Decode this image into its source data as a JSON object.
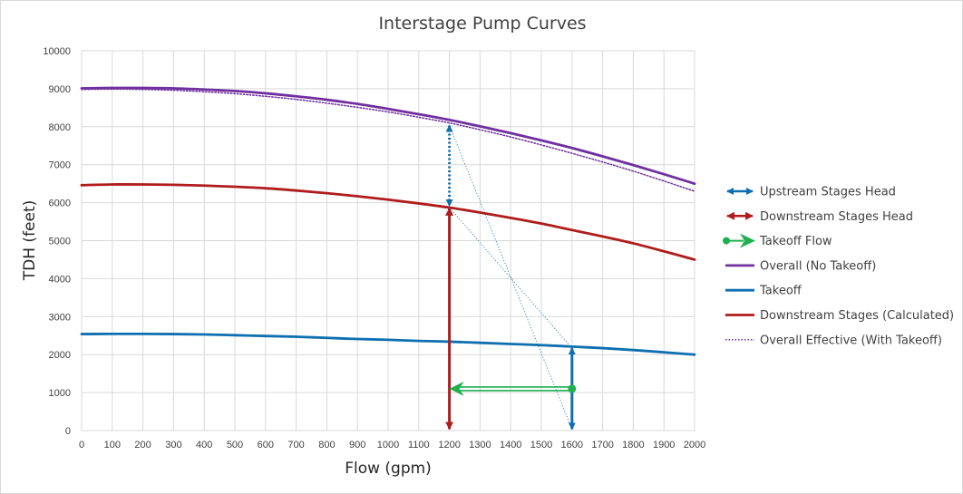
{
  "chart_data": {
    "type": "line",
    "title": "Interstage Pump Curves",
    "xlabel": "Flow (gpm)",
    "ylabel": "TDH (feet)",
    "xlim": [
      0,
      2000
    ],
    "ylim": [
      0,
      10000
    ],
    "x_ticks": [
      0,
      100,
      200,
      300,
      400,
      500,
      600,
      700,
      800,
      900,
      1000,
      1100,
      1200,
      1300,
      1400,
      1500,
      1600,
      1700,
      1800,
      1900,
      2000
    ],
    "y_ticks": [
      0,
      1000,
      2000,
      3000,
      4000,
      5000,
      6000,
      7000,
      8000,
      9000,
      10000
    ],
    "grid": true,
    "legend_position": "right",
    "series": [
      {
        "name": "Overall (No Takeoff)",
        "color": "#7030a0",
        "style": "solid",
        "x": [
          0,
          100,
          200,
          300,
          400,
          500,
          600,
          700,
          800,
          900,
          1000,
          1100,
          1200,
          1300,
          1400,
          1500,
          1600,
          1700,
          1800,
          1900,
          2000
        ],
        "y": [
          9010,
          9020,
          9020,
          9010,
          8980,
          8940,
          8880,
          8800,
          8710,
          8600,
          8470,
          8330,
          8180,
          8010,
          7830,
          7640,
          7440,
          7220,
          6990,
          6750,
          6500
        ]
      },
      {
        "name": "Takeoff",
        "color": "#0e6fb0",
        "style": "solid",
        "x": [
          0,
          100,
          200,
          300,
          400,
          500,
          600,
          700,
          800,
          900,
          1000,
          1100,
          1200,
          1300,
          1400,
          1500,
          1600,
          1700,
          1800,
          1900,
          2000
        ],
        "y": [
          2540,
          2545,
          2545,
          2540,
          2530,
          2510,
          2490,
          2470,
          2440,
          2410,
          2390,
          2360,
          2340,
          2310,
          2280,
          2250,
          2210,
          2170,
          2120,
          2060,
          2000
        ]
      },
      {
        "name": "Downstream Stages (Calculated)",
        "color": "#b01c1c",
        "style": "solid",
        "x": [
          0,
          100,
          200,
          300,
          400,
          500,
          600,
          700,
          800,
          900,
          1000,
          1100,
          1200,
          1300,
          1400,
          1500,
          1600,
          1700,
          1800,
          1900,
          2000
        ],
        "y": [
          6460,
          6480,
          6480,
          6470,
          6450,
          6420,
          6380,
          6320,
          6250,
          6170,
          6080,
          5980,
          5870,
          5740,
          5600,
          5450,
          5280,
          5110,
          4930,
          4720,
          4500
        ]
      },
      {
        "name": "Overall Effective (With Takeoff)",
        "color": "#7030a0",
        "style": "dotted",
        "x": [
          0,
          100,
          200,
          300,
          400,
          500,
          600,
          700,
          800,
          900,
          1000,
          1100,
          1200,
          1300,
          1400,
          1500,
          1600,
          1700,
          1800,
          1900,
          2000
        ],
        "y": [
          8980,
          8990,
          8980,
          8960,
          8920,
          8870,
          8800,
          8720,
          8620,
          8510,
          8390,
          8250,
          8100,
          7920,
          7730,
          7520,
          7300,
          7070,
          6830,
          6570,
          6300
        ]
      }
    ],
    "annotations": [
      {
        "name": "Upstream Stages Head",
        "color": "#0e6fb0",
        "kind": "double-arrow-dotted",
        "x1": 1200,
        "y1": 8030,
        "x2": 1200,
        "y2": 5920
      },
      {
        "name": "Downstream Stages Head",
        "color": "#b01c1c",
        "kind": "double-arrow",
        "x1": 1200,
        "y1": 5850,
        "x2": 1200,
        "y2": 40
      },
      {
        "name": "Takeoff Head",
        "color": "#0e6fb0",
        "kind": "double-arrow",
        "x1": 1600,
        "y1": 2170,
        "x2": 1600,
        "y2": 40
      },
      {
        "name": "Takeoff Flow",
        "color": "#1fb050",
        "kind": "dot-arrow",
        "x1": 1600,
        "y1": 1100,
        "x2": 1200,
        "y2": 1100
      },
      {
        "name": "Guide Line A",
        "color": "#0e6fb0",
        "kind": "thin-dotted-line",
        "x1": 1200,
        "y1": 8030,
        "x2": 1600,
        "y2": 40
      },
      {
        "name": "Guide Line B",
        "color": "#0e6fb0",
        "kind": "thin-dotted-line",
        "x1": 1200,
        "y1": 5870,
        "x2": 1600,
        "y2": 2170
      }
    ],
    "legend": [
      {
        "label": "Upstream Stages Head",
        "color": "#0e6fb0",
        "kind": "double-arrow"
      },
      {
        "label": "Downstream Stages Head",
        "color": "#b01c1c",
        "kind": "double-arrow"
      },
      {
        "label": "Takeoff Flow",
        "color": "#1fb050",
        "kind": "dot-arrow"
      },
      {
        "label": "Overall (No Takeoff)",
        "color": "#7030a0",
        "kind": "solid"
      },
      {
        "label": "Takeoff",
        "color": "#0e6fb0",
        "kind": "solid"
      },
      {
        "label": "Downstream Stages (Calculated)",
        "color": "#b01c1c",
        "kind": "solid"
      },
      {
        "label": "Overall Effective (With Takeoff)",
        "color": "#7030a0",
        "kind": "dotted"
      }
    ]
  }
}
